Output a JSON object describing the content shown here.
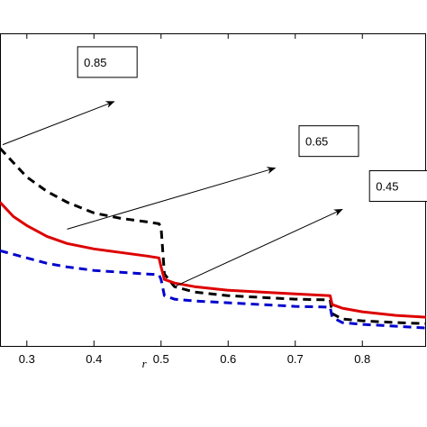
{
  "chart_data": {
    "type": "line",
    "title": "",
    "xlabel": "r",
    "ylabel": "",
    "xlim": [
      0.26,
      0.895
    ],
    "xticks": [
      "0.3",
      "0.4",
      "0.5",
      "0.6",
      "0.7",
      "0.8"
    ],
    "xtick_values": [
      0.3,
      0.4,
      0.5,
      0.6,
      0.7,
      0.8
    ],
    "grid": false,
    "series": [
      {
        "color": "#000000",
        "style": "dashed",
        "points": [
          [
            0.26,
            0.77
          ],
          [
            0.28,
            0.73
          ],
          [
            0.3,
            0.69
          ],
          [
            0.33,
            0.65
          ],
          [
            0.36,
            0.62
          ],
          [
            0.4,
            0.59
          ],
          [
            0.44,
            0.575
          ],
          [
            0.48,
            0.565
          ],
          [
            0.497,
            0.56
          ],
          [
            0.5,
            0.55
          ],
          [
            0.505,
            0.42
          ],
          [
            0.52,
            0.385
          ],
          [
            0.55,
            0.37
          ],
          [
            0.6,
            0.36
          ],
          [
            0.65,
            0.355
          ],
          [
            0.7,
            0.35
          ],
          [
            0.752,
            0.348
          ],
          [
            0.755,
            0.31
          ],
          [
            0.77,
            0.295
          ],
          [
            0.8,
            0.29
          ],
          [
            0.85,
            0.285
          ],
          [
            0.895,
            0.282
          ]
        ]
      },
      {
        "color": "#dd0000",
        "style": "solid",
        "points": [
          [
            0.26,
            0.62
          ],
          [
            0.28,
            0.58
          ],
          [
            0.3,
            0.555
          ],
          [
            0.33,
            0.525
          ],
          [
            0.36,
            0.505
          ],
          [
            0.4,
            0.49
          ],
          [
            0.44,
            0.48
          ],
          [
            0.48,
            0.47
          ],
          [
            0.497,
            0.465
          ],
          [
            0.5,
            0.44
          ],
          [
            0.505,
            0.405
          ],
          [
            0.52,
            0.395
          ],
          [
            0.55,
            0.385
          ],
          [
            0.6,
            0.375
          ],
          [
            0.65,
            0.37
          ],
          [
            0.7,
            0.365
          ],
          [
            0.752,
            0.36
          ],
          [
            0.755,
            0.335
          ],
          [
            0.77,
            0.325
          ],
          [
            0.8,
            0.315
          ],
          [
            0.85,
            0.305
          ],
          [
            0.895,
            0.3
          ]
        ]
      },
      {
        "color": "#0000cc",
        "style": "dashed",
        "points": [
          [
            0.26,
            0.485
          ],
          [
            0.28,
            0.475
          ],
          [
            0.3,
            0.465
          ],
          [
            0.33,
            0.45
          ],
          [
            0.36,
            0.44
          ],
          [
            0.4,
            0.43
          ],
          [
            0.44,
            0.425
          ],
          [
            0.48,
            0.42
          ],
          [
            0.497,
            0.418
          ],
          [
            0.5,
            0.405
          ],
          [
            0.505,
            0.36
          ],
          [
            0.52,
            0.35
          ],
          [
            0.55,
            0.345
          ],
          [
            0.6,
            0.34
          ],
          [
            0.65,
            0.335
          ],
          [
            0.7,
            0.33
          ],
          [
            0.752,
            0.328
          ],
          [
            0.755,
            0.3
          ],
          [
            0.77,
            0.285
          ],
          [
            0.8,
            0.28
          ],
          [
            0.85,
            0.275
          ],
          [
            0.895,
            0.27
          ]
        ]
      }
    ],
    "annotations": [
      {
        "text": "0.85",
        "from": [
          0.264,
          0.78
        ],
        "to": [
          0.43,
          0.9
        ],
        "box": [
          0.42,
          1.01
        ]
      },
      {
        "text": "0.65",
        "from": [
          0.36,
          0.545
        ],
        "to": [
          0.67,
          0.715
        ],
        "box": [
          0.75,
          0.79
        ]
      },
      {
        "text": "0.45",
        "from": [
          0.52,
          0.385
        ],
        "to": [
          0.77,
          0.6
        ],
        "box": [
          0.855,
          0.665
        ]
      }
    ]
  }
}
